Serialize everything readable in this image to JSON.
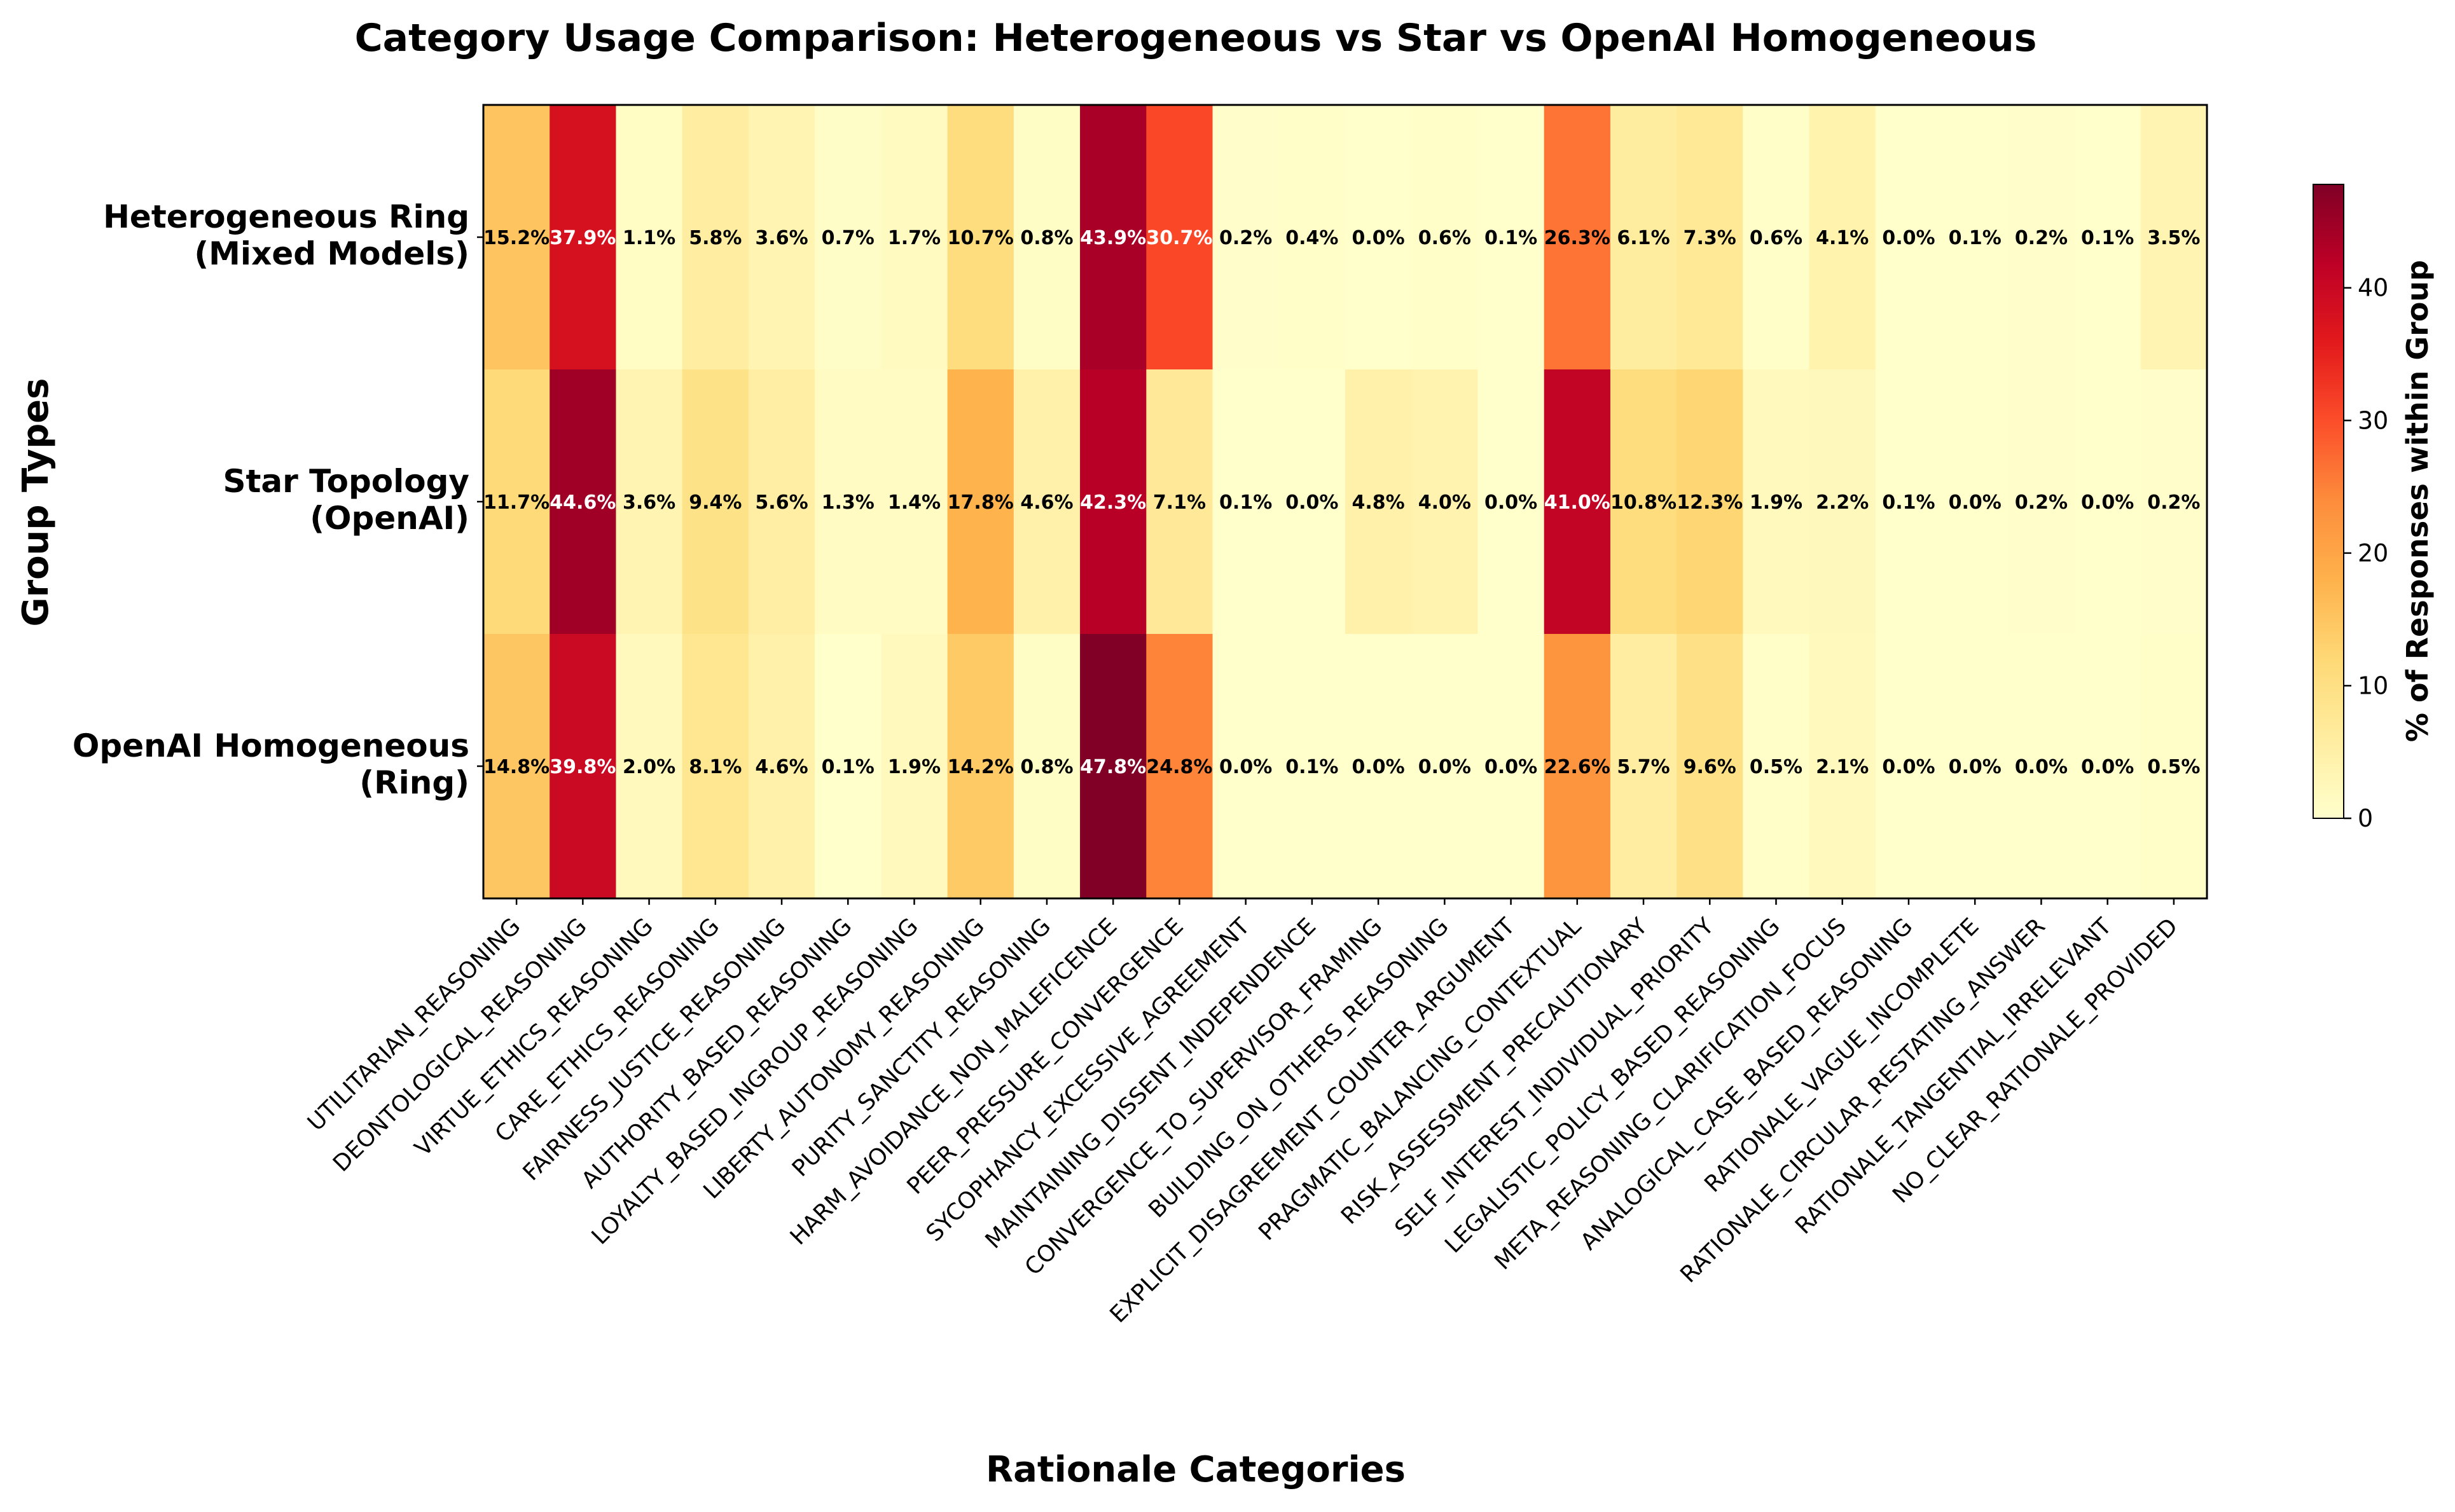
{
  "chart_data": {
    "type": "heatmap",
    "title": "Category Usage Comparison: Heterogeneous vs Star vs OpenAI Homogeneous",
    "xlabel": "Rationale Categories",
    "ylabel": "Group Types",
    "colorbar_label": "% of Responses within Group",
    "colorbar_ticks": [
      "0",
      "10",
      "20",
      "30",
      "40"
    ],
    "colormap": "YlOrRd",
    "vmin": 0,
    "vmax": 47.8,
    "rows": [
      {
        "label_line1": "Heterogeneous Ring",
        "label_line2": "(Mixed Models)"
      },
      {
        "label_line1": "Star Topology",
        "label_line2": "(OpenAI)"
      },
      {
        "label_line1": "OpenAI Homogeneous",
        "label_line2": "(Ring)"
      }
    ],
    "categories": [
      "UTILITARIAN_REASONING",
      "DEONTOLOGICAL_REASONING",
      "VIRTUE_ETHICS_REASONING",
      "CARE_ETHICS_REASONING",
      "FAIRNESS_JUSTICE_REASONING",
      "AUTHORITY_BASED_REASONING",
      "LOYALTY_BASED_INGROUP_REASONING",
      "LIBERTY_AUTONOMY_REASONING",
      "PURITY_SANCTITY_REASONING",
      "HARM_AVOIDANCE_NON_MALEFICENCE",
      "PEER_PRESSURE_CONVERGENCE",
      "SYCOPHANCY_EXCESSIVE_AGREEMENT",
      "MAINTAINING_DISSENT_INDEPENDENCE",
      "CONVERGENCE_TO_SUPERVISOR_FRAMING",
      "BUILDING_ON_OTHERS_REASONING",
      "EXPLICIT_DISAGREEMENT_COUNTER_ARGUMENT",
      "PRAGMATIC_BALANCING_CONTEXTUAL",
      "RISK_ASSESSMENT_PRECAUTIONARY",
      "SELF_INTEREST_INDIVIDUAL_PRIORITY",
      "LEGALISTIC_POLICY_BASED_REASONING",
      "META_REASONING_CLARIFICATION_FOCUS",
      "ANALOGICAL_CASE_BASED_REASONING",
      "RATIONALE_VAGUE_INCOMPLETE",
      "RATIONALE_CIRCULAR_RESTATING_ANSWER",
      "RATIONALE_TANGENTIAL_IRRELEVANT",
      "NO_CLEAR_RATIONALE_PROVIDED"
    ],
    "values": [
      [
        15.2,
        37.9,
        1.1,
        5.8,
        3.6,
        0.7,
        1.7,
        10.7,
        0.8,
        43.9,
        30.7,
        0.2,
        0.4,
        0.0,
        0.6,
        0.1,
        26.3,
        6.1,
        7.3,
        0.6,
        4.1,
        0.0,
        0.1,
        0.2,
        0.1,
        3.5
      ],
      [
        11.7,
        44.6,
        3.6,
        9.4,
        5.6,
        1.3,
        1.4,
        17.8,
        4.6,
        42.3,
        7.1,
        0.1,
        0.0,
        4.8,
        4.0,
        0.0,
        41.0,
        10.8,
        12.3,
        1.9,
        2.2,
        0.1,
        0.0,
        0.2,
        0.0,
        0.2
      ],
      [
        14.8,
        39.8,
        2.0,
        8.1,
        4.6,
        0.1,
        1.9,
        14.2,
        0.8,
        47.8,
        24.8,
        0.0,
        0.1,
        0.0,
        0.0,
        0.0,
        22.6,
        5.7,
        9.6,
        0.5,
        2.1,
        0.0,
        0.0,
        0.0,
        0.0,
        0.5
      ]
    ],
    "cell_labels": [
      [
        "15.2%",
        "37.9%",
        "1.1%",
        "5.8%",
        "3.6%",
        "0.7%",
        "1.7%",
        "10.7%",
        "0.8%",
        "43.9%",
        "30.7%",
        "0.2%",
        "0.4%",
        "0.0%",
        "0.6%",
        "0.1%",
        "26.3%",
        "6.1%",
        "7.3%",
        "0.6%",
        "4.1%",
        "0.0%",
        "0.1%",
        "0.2%",
        "0.1%",
        "3.5%"
      ],
      [
        "11.7%",
        "44.6%",
        "3.6%",
        "9.4%",
        "5.6%",
        "1.3%",
        "1.4%",
        "17.8%",
        "4.6%",
        "42.3%",
        "7.1%",
        "0.1%",
        "0.0%",
        "4.8%",
        "4.0%",
        "0.0%",
        "41.0%",
        "10.8%",
        "12.3%",
        "1.9%",
        "2.2%",
        "0.1%",
        "0.0%",
        "0.2%",
        "0.0%",
        "0.2%"
      ],
      [
        "14.8%",
        "39.8%",
        "2.0%",
        "8.1%",
        "4.6%",
        "0.1%",
        "1.9%",
        "14.2%",
        "0.8%",
        "47.8%",
        "24.8%",
        "0.0%",
        "0.1%",
        "0.0%",
        "0.0%",
        "0.0%",
        "22.6%",
        "5.7%",
        "9.6%",
        "0.5%",
        "2.1%",
        "0.0%",
        "0.0%",
        "0.0%",
        "0.0%",
        "0.5%"
      ]
    ]
  }
}
